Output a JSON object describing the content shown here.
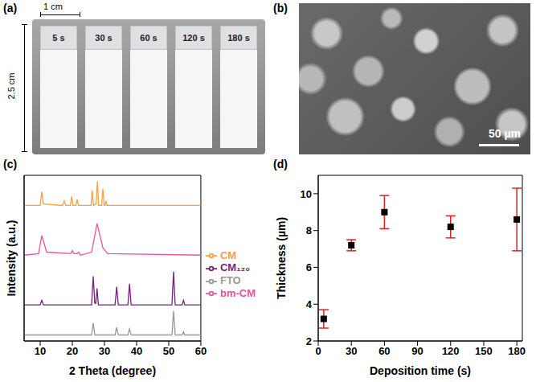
{
  "panels": [
    {
      "letter": "(a)",
      "scale_x": "1 cm",
      "scale_y": "2.5 cm",
      "labels": [
        "5 s",
        "30 s",
        "60 s",
        "120 s",
        "180 s"
      ]
    },
    {
      "letter": "(b)",
      "scale_bar": "50 µm"
    }
  ],
  "chart_data": [
    {
      "letter": "(c)",
      "type": "line",
      "x_label": "2 Theta (degree)",
      "y_label": "Intensity (a.u.)",
      "xlim": [
        5,
        60
      ],
      "xticks": [
        10,
        20,
        30,
        40,
        50,
        60
      ],
      "ylim": [
        0,
        110
      ],
      "yticks": [],
      "tick_labels": "x",
      "legend": "right",
      "grid": false,
      "series": [
        {
          "name": "CM",
          "color": "#f5a042",
          "x": [
            5,
            10,
            10.5,
            11,
            17,
            17.5,
            18,
            19.4,
            19.8,
            20.2,
            21.1,
            21.5,
            21.9,
            25.8,
            26.2,
            26.6,
            27.4,
            27.8,
            28.2,
            29.1,
            29.5,
            29.9,
            30.2,
            30.5,
            30.8,
            60
          ],
          "values": [
            90,
            90,
            99,
            91,
            90,
            93,
            90,
            90,
            96,
            90,
            90,
            94,
            90,
            90,
            100,
            90,
            91,
            106,
            90,
            90,
            101,
            90,
            90,
            93,
            90,
            90
          ]
        },
        {
          "name": "bm-CM",
          "color": "#e8559a",
          "x": [
            5,
            9.5,
            10.5,
            12,
            19.5,
            20,
            20.5,
            21.5,
            22,
            22.5,
            26,
            27.7,
            29.5,
            31,
            60
          ],
          "values": [
            57,
            58,
            70,
            59,
            58,
            60,
            58,
            58,
            59,
            57,
            59,
            78,
            62,
            58,
            57
          ]
        },
        {
          "name": "CM₁₂₀",
          "color": "#7a1f7a",
          "x": [
            5,
            10,
            10.5,
            11,
            26,
            26.5,
            27,
            27.3,
            27.7,
            28.1,
            33.3,
            33.8,
            34.3,
            37.3,
            37.8,
            38.3,
            51,
            51.5,
            52,
            54.2,
            54.6,
            55,
            60
          ],
          "values": [
            24,
            24,
            27,
            24,
            24,
            43,
            25,
            25,
            35,
            24,
            24,
            36,
            24,
            24,
            38,
            24,
            24,
            46,
            24,
            24,
            27,
            24,
            24
          ]
        },
        {
          "name": "FTO",
          "color": "#999999",
          "x": [
            5,
            26,
            26.5,
            27,
            33.3,
            33.8,
            34.3,
            37.3,
            37.8,
            38.3,
            51,
            51.5,
            52,
            54.2,
            54.6,
            55,
            60
          ],
          "values": [
            4,
            4,
            12,
            4,
            4,
            9,
            4,
            4,
            8,
            4,
            4,
            20,
            4,
            4,
            6,
            4,
            4
          ]
        }
      ]
    },
    {
      "letter": "(d)",
      "type": "scatter",
      "x_label": "Deposition time (s)",
      "y_label": "Thickness (µm)",
      "xlim": [
        0,
        185
      ],
      "xticks": [
        0,
        30,
        60,
        90,
        120,
        150,
        180
      ],
      "ylim": [
        2,
        11
      ],
      "yticks": [
        2,
        4,
        6,
        8,
        10
      ],
      "x": [
        5,
        30,
        60,
        120,
        180
      ],
      "values": [
        3.2,
        7.2,
        9.0,
        8.2,
        8.6
      ],
      "errors": [
        0.5,
        0.3,
        0.9,
        0.6,
        1.7
      ],
      "color": "#000000",
      "marker": "square",
      "grid": false
    }
  ]
}
